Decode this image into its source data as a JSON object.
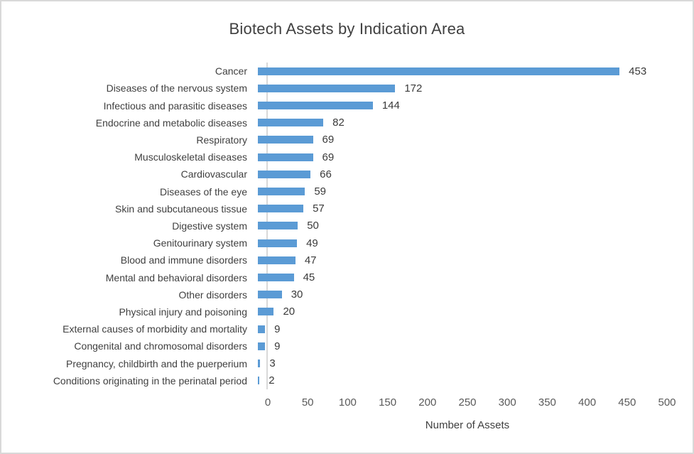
{
  "chart_data": {
    "type": "bar",
    "orientation": "horizontal",
    "title": "Biotech Assets by Indication Area",
    "xlabel": "Number of Assets",
    "categories": [
      "Cancer",
      "Diseases of the nervous system",
      "Infectious and parasitic diseases",
      "Endocrine and metabolic diseases",
      "Respiratory",
      "Musculoskeletal diseases",
      "Cardiovascular",
      "Diseases of the eye",
      "Skin and subcutaneous tissue",
      "Digestive system",
      "Genitourinary system",
      "Blood and immune disorders",
      "Mental and behavioral disorders",
      "Other disorders",
      "Physical injury and poisoning",
      "External causes of morbidity and mortality",
      "Congenital and chromosomal disorders",
      "Pregnancy, childbirth and the puerperium",
      "Conditions originating in the perinatal period"
    ],
    "values": [
      453,
      172,
      144,
      82,
      69,
      69,
      66,
      59,
      57,
      50,
      49,
      47,
      45,
      30,
      20,
      9,
      9,
      3,
      2
    ],
    "data_labels": [
      453,
      172,
      144,
      82,
      69,
      69,
      66,
      59,
      57,
      50,
      49,
      47,
      45,
      30,
      20,
      9,
      9,
      3,
      2
    ],
    "x_ticks": [
      0,
      50,
      100,
      150,
      200,
      250,
      300,
      350,
      400,
      450,
      500
    ],
    "xlim": [
      0,
      500
    ],
    "grid": false,
    "legend": "none",
    "bar_color": "#5b9bd5",
    "axis_line_color": "#d9d9d9"
  }
}
